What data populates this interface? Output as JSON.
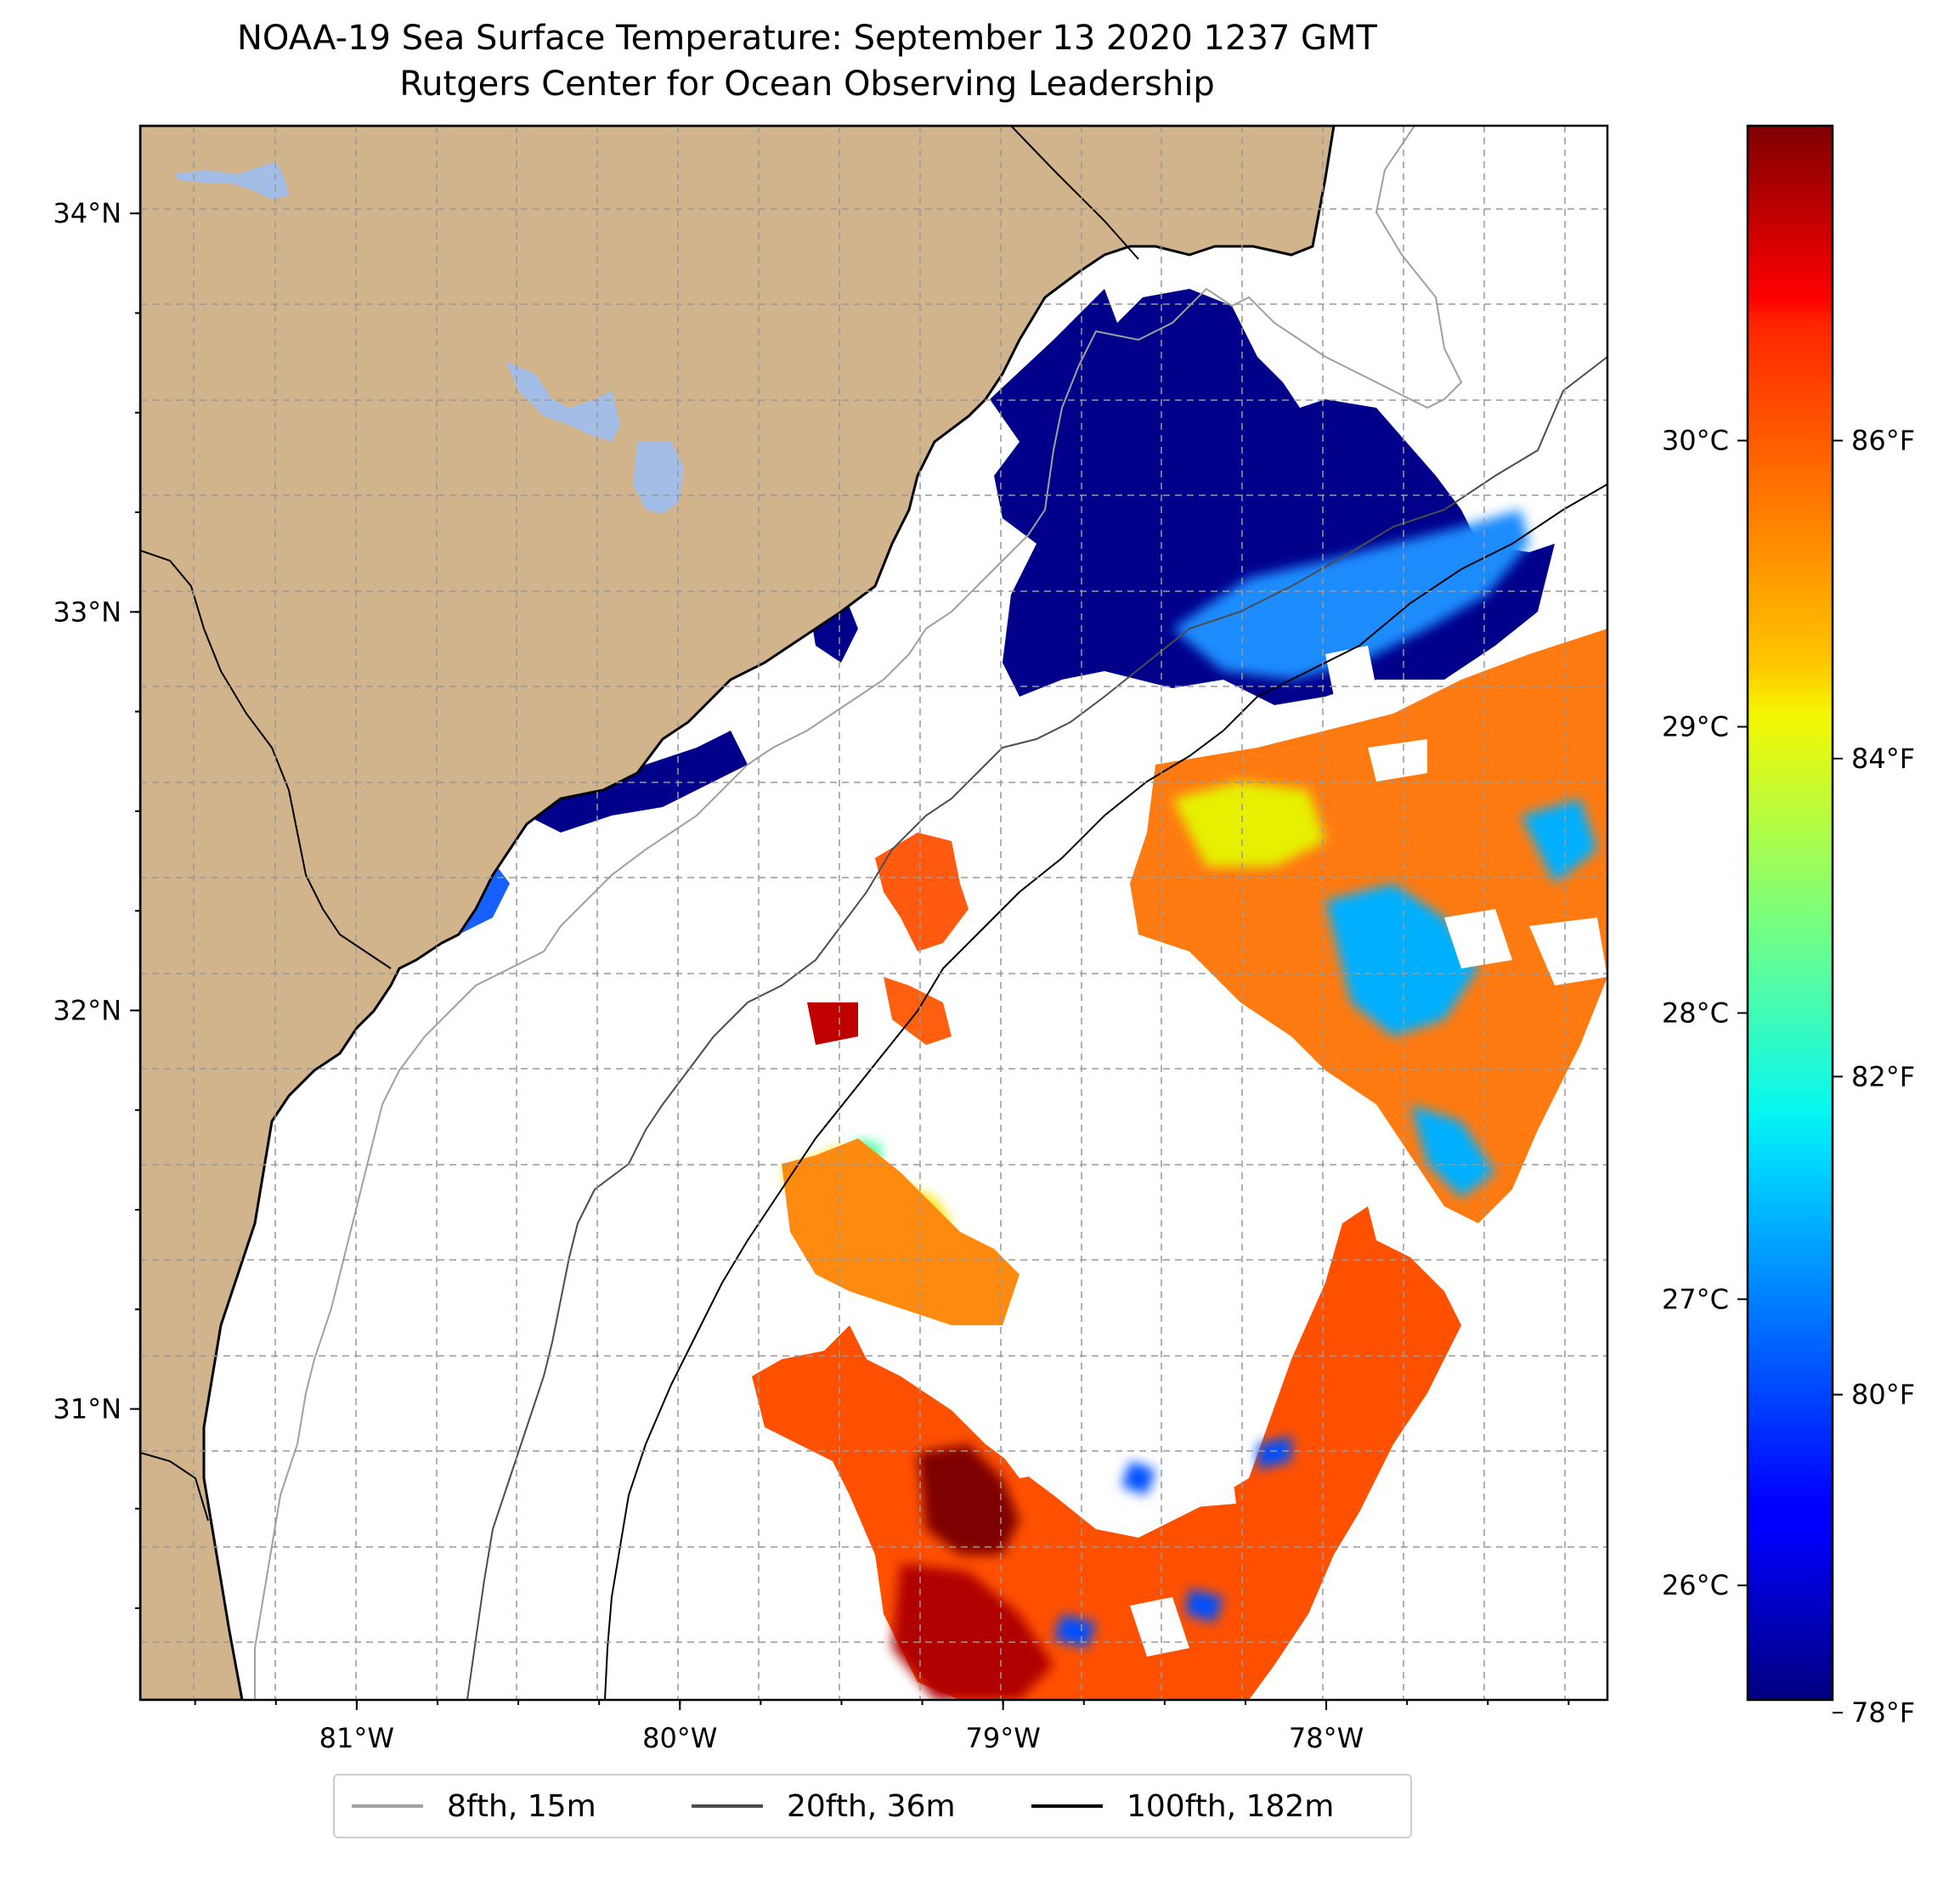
{
  "title": {
    "line1": "NOAA-19 Sea Surface Temperature: September 13 2020 1237 GMT",
    "line2": "Rutgers Center for Ocean Observing Leadership"
  },
  "map": {
    "extent": {
      "lon_min": -81.67,
      "lon_max": -77.13,
      "lat_min": 30.27,
      "lat_max": 34.22
    },
    "lon_ticks": [
      {
        "value": -81,
        "label": "81°W"
      },
      {
        "value": -80,
        "label": "80°W"
      },
      {
        "value": -79,
        "label": "79°W"
      },
      {
        "value": -78,
        "label": "78°W"
      }
    ],
    "lat_ticks": [
      {
        "value": 34,
        "label": "34°N"
      },
      {
        "value": 33,
        "label": "33°N"
      },
      {
        "value": 32,
        "label": "32°N"
      },
      {
        "value": 31,
        "label": "31°N"
      }
    ],
    "colors": {
      "land": "#d2b48c",
      "lakes": "#a3bde6",
      "no_data": "#ffffff",
      "coastline": "#000000",
      "grid": "#999999"
    }
  },
  "legend": [
    {
      "label": "8fth, 15m",
      "color": "#a0a0a0"
    },
    {
      "label": "20fth, 36m",
      "color": "#4d4d4d"
    },
    {
      "label": "100fth, 182m",
      "color": "#000000"
    }
  ],
  "colorbar": {
    "colormap": "jet",
    "range_c": [
      25.6,
      31.1
    ],
    "celsius_ticks": [
      {
        "value": 26,
        "label": "26°C"
      },
      {
        "value": 27,
        "label": "27°C"
      },
      {
        "value": 28,
        "label": "28°C"
      },
      {
        "value": 29,
        "label": "29°C"
      },
      {
        "value": 30,
        "label": "30°C"
      }
    ],
    "fahrenheit_ticks": [
      {
        "value": 78,
        "label": "78°F"
      },
      {
        "value": 80,
        "label": "80°F"
      },
      {
        "value": 82,
        "label": "82°F"
      },
      {
        "value": 84,
        "label": "84°F"
      },
      {
        "value": 86,
        "label": "86°F"
      }
    ]
  }
}
